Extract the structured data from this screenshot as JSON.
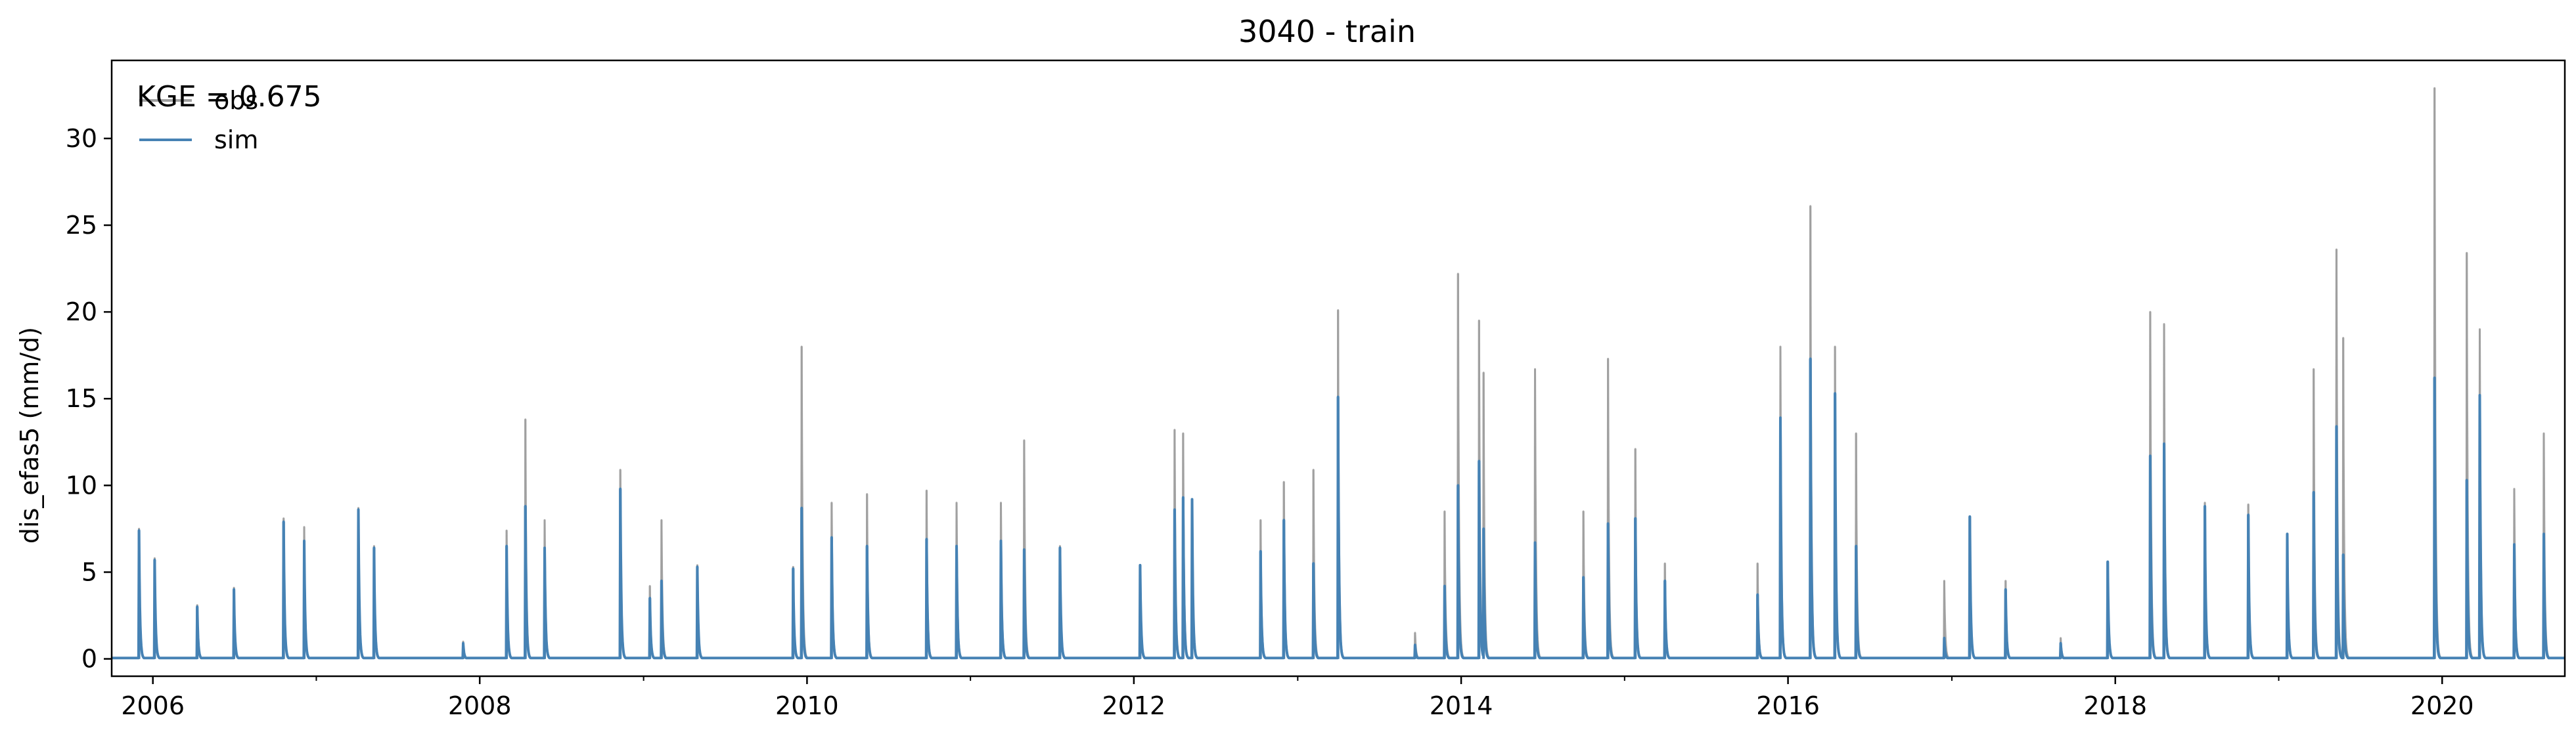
{
  "chart_data": {
    "type": "line",
    "title": "3040 - train",
    "xlabel": "",
    "ylabel": "dis_efas5 (mm/d)",
    "xlim": [
      "2005-10-01",
      "2020-10-01"
    ],
    "ylim": [
      -1,
      34.5
    ],
    "x_ticks": [
      "2006",
      "2008",
      "2010",
      "2012",
      "2014",
      "2016",
      "2018",
      "2020"
    ],
    "y_ticks": [
      0,
      5,
      10,
      15,
      20,
      25,
      30
    ],
    "grid": false,
    "legend": {
      "placement": "top-left",
      "entries": [
        {
          "name": "obs",
          "color": "#a0a0a0"
        },
        {
          "name": "sim",
          "color": "#4682b4"
        }
      ]
    },
    "annotation": "KGE = 0.675",
    "series": [
      {
        "name": "obs",
        "color": "#a0a0a0",
        "peaks": [
          [
            "2005-12-01",
            7.5
          ],
          [
            "2006-01-05",
            5.8
          ],
          [
            "2006-04-10",
            3.1
          ],
          [
            "2006-07-01",
            4.1
          ],
          [
            "2006-10-20",
            8.1
          ],
          [
            "2006-12-05",
            7.6
          ],
          [
            "2007-04-05",
            8.7
          ],
          [
            "2007-05-10",
            6.5
          ],
          [
            "2007-11-25",
            1.0
          ],
          [
            "2008-03-01",
            7.4
          ],
          [
            "2008-04-12",
            13.8
          ],
          [
            "2008-05-25",
            8.0
          ],
          [
            "2008-11-10",
            10.9
          ],
          [
            "2009-01-15",
            4.2
          ],
          [
            "2009-02-10",
            8.0
          ],
          [
            "2009-05-01",
            5.4
          ],
          [
            "2009-12-01",
            5.3
          ],
          [
            "2009-12-20",
            18.0
          ],
          [
            "2010-02-25",
            9.0
          ],
          [
            "2010-05-15",
            9.5
          ],
          [
            "2010-09-25",
            9.7
          ],
          [
            "2010-12-01",
            9.0
          ],
          [
            "2011-03-10",
            9.0
          ],
          [
            "2011-05-01",
            12.6
          ],
          [
            "2011-07-20",
            6.5
          ],
          [
            "2012-01-15",
            5.4
          ],
          [
            "2012-04-01",
            13.2
          ],
          [
            "2012-04-20",
            13.0
          ],
          [
            "2012-05-10",
            9.2
          ],
          [
            "2012-10-10",
            8.0
          ],
          [
            "2012-12-01",
            10.2
          ],
          [
            "2013-02-05",
            10.9
          ],
          [
            "2013-04-01",
            20.1
          ],
          [
            "2013-09-20",
            1.5
          ],
          [
            "2013-11-25",
            8.5
          ],
          [
            "2013-12-25",
            22.2
          ],
          [
            "2014-02-10",
            19.5
          ],
          [
            "2014-02-20",
            16.5
          ],
          [
            "2014-06-15",
            16.7
          ],
          [
            "2014-10-01",
            8.5
          ],
          [
            "2014-11-25",
            17.3
          ],
          [
            "2015-01-25",
            12.1
          ],
          [
            "2015-04-01",
            5.5
          ],
          [
            "2015-10-25",
            5.5
          ],
          [
            "2015-12-15",
            18.0
          ],
          [
            "2016-02-20",
            26.1
          ],
          [
            "2016-04-15",
            18.0
          ],
          [
            "2016-06-01",
            13.0
          ],
          [
            "2016-12-15",
            4.5
          ],
          [
            "2017-02-10",
            8.0
          ],
          [
            "2017-05-01",
            4.5
          ],
          [
            "2017-09-01",
            1.2
          ],
          [
            "2017-12-15",
            5.4
          ],
          [
            "2018-03-20",
            20.0
          ],
          [
            "2018-04-20",
            19.3
          ],
          [
            "2018-07-20",
            9.0
          ],
          [
            "2018-10-25",
            8.9
          ],
          [
            "2019-01-20",
            7.0
          ],
          [
            "2019-03-20",
            16.7
          ],
          [
            "2019-05-10",
            23.6
          ],
          [
            "2019-05-25",
            18.5
          ],
          [
            "2019-12-15",
            32.9
          ],
          [
            "2020-02-25",
            23.4
          ],
          [
            "2020-03-25",
            19.0
          ],
          [
            "2020-06-10",
            9.8
          ],
          [
            "2020-08-15",
            13.0
          ]
        ]
      },
      {
        "name": "sim",
        "color": "#4682b4",
        "peaks": [
          [
            "2005-12-01",
            7.4
          ],
          [
            "2006-01-05",
            5.7
          ],
          [
            "2006-04-10",
            3.0
          ],
          [
            "2006-07-01",
            4.0
          ],
          [
            "2006-10-20",
            7.9
          ],
          [
            "2006-12-05",
            6.8
          ],
          [
            "2007-04-05",
            8.6
          ],
          [
            "2007-05-10",
            6.4
          ],
          [
            "2007-11-25",
            0.9
          ],
          [
            "2008-03-01",
            6.5
          ],
          [
            "2008-04-12",
            8.8
          ],
          [
            "2008-05-25",
            6.4
          ],
          [
            "2008-11-10",
            9.8
          ],
          [
            "2009-01-15",
            3.5
          ],
          [
            "2009-02-10",
            4.5
          ],
          [
            "2009-05-01",
            5.3
          ],
          [
            "2009-12-01",
            5.2
          ],
          [
            "2009-12-20",
            8.7
          ],
          [
            "2010-02-25",
            7.0
          ],
          [
            "2010-05-15",
            6.5
          ],
          [
            "2010-09-25",
            6.9
          ],
          [
            "2010-12-01",
            6.5
          ],
          [
            "2011-03-10",
            6.8
          ],
          [
            "2011-05-01",
            6.3
          ],
          [
            "2011-07-20",
            6.4
          ],
          [
            "2012-01-15",
            5.4
          ],
          [
            "2012-04-01",
            8.6
          ],
          [
            "2012-04-20",
            9.3
          ],
          [
            "2012-05-10",
            9.2
          ],
          [
            "2012-10-10",
            6.2
          ],
          [
            "2012-12-01",
            8.0
          ],
          [
            "2013-02-05",
            5.5
          ],
          [
            "2013-04-01",
            15.1
          ],
          [
            "2013-09-20",
            0.8
          ],
          [
            "2013-11-25",
            4.2
          ],
          [
            "2013-12-25",
            10.0
          ],
          [
            "2014-02-10",
            11.4
          ],
          [
            "2014-02-20",
            7.5
          ],
          [
            "2014-06-15",
            6.7
          ],
          [
            "2014-10-01",
            4.7
          ],
          [
            "2014-11-25",
            7.8
          ],
          [
            "2015-01-25",
            8.1
          ],
          [
            "2015-04-01",
            4.5
          ],
          [
            "2015-10-25",
            3.7
          ],
          [
            "2015-12-15",
            13.9
          ],
          [
            "2016-02-20",
            17.3
          ],
          [
            "2016-04-15",
            15.3
          ],
          [
            "2016-06-01",
            6.5
          ],
          [
            "2016-12-15",
            1.2
          ],
          [
            "2017-02-10",
            8.2
          ],
          [
            "2017-05-01",
            4.0
          ],
          [
            "2017-09-01",
            0.9
          ],
          [
            "2017-12-15",
            5.6
          ],
          [
            "2018-03-20",
            11.7
          ],
          [
            "2018-04-20",
            12.4
          ],
          [
            "2018-07-20",
            8.8
          ],
          [
            "2018-10-25",
            8.3
          ],
          [
            "2019-01-20",
            7.2
          ],
          [
            "2019-03-20",
            9.6
          ],
          [
            "2019-05-10",
            13.4
          ],
          [
            "2019-05-25",
            6.0
          ],
          [
            "2019-12-15",
            16.2
          ],
          [
            "2020-02-25",
            10.3
          ],
          [
            "2020-03-25",
            15.2
          ],
          [
            "2020-06-10",
            6.6
          ],
          [
            "2020-08-15",
            7.2
          ]
        ]
      }
    ]
  }
}
